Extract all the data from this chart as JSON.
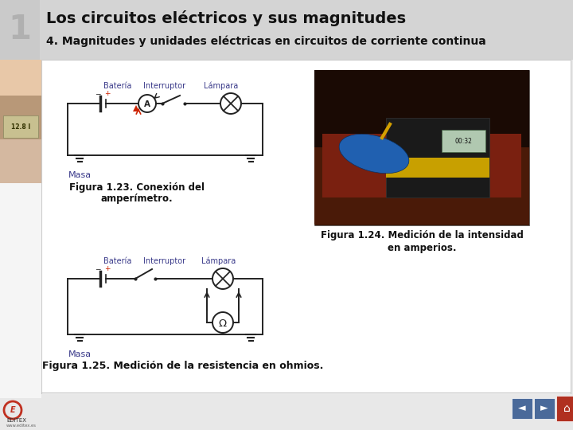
{
  "title_number": "1",
  "title_main": "Los circuitos eléctricos y sus magnitudes",
  "title_sub": "4. Magnitudes y unidades eléctricas en circuitos de corriente continua",
  "fig123_caption_line1": "Figura 1.23. Conexión del",
  "fig123_caption_line2": "amperímetro.",
  "fig124_caption_line1": "Figura 1.24. Medición de la intensidad",
  "fig124_caption_line2": "en amperios.",
  "fig125_caption": "Figura 1.25. Medición de la resistencia en ohmios.",
  "bg_color": "#e8e8e8",
  "header_bg": "#d4d4d4",
  "content_bg": "#ffffff",
  "number_color": "#aaaaaa",
  "title_color": "#111111",
  "subtitle_color": "#111111",
  "caption_color": "#111111",
  "nav_bg": "#4a6a9a",
  "nav_home_bg": "#b03020",
  "circuit_color": "#222222",
  "label_color": "#3a3a8a",
  "plus_color": "#cc2200",
  "left_img_top": "#e8d0c0",
  "left_img_mid": "#c8a080",
  "left_img_bot": "#f0f0f0"
}
